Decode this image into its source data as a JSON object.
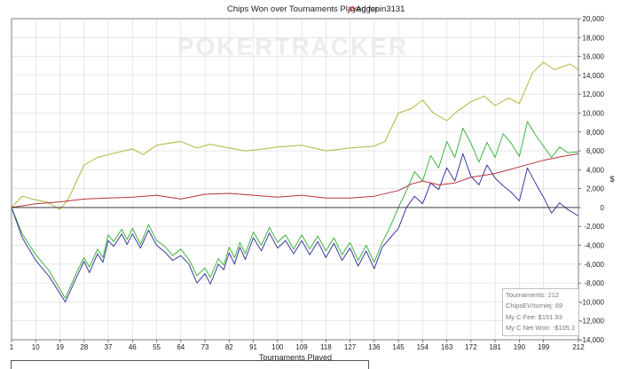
{
  "title_prefix": "Chips Won over Tournaments Played for ",
  "player_name": "Aggspin3131",
  "brand_watermark": "POKERTRACKER",
  "stats": {
    "tournaments": "Tournaments: 212",
    "chipsev": "ChipsEV/turniej: 69",
    "fee": "My C Fee: $151.93",
    "net_won": "My C Net Won: -$105.19"
  },
  "colors": {
    "olive": "#b3b339",
    "green": "#3fb53f",
    "blue": "#3a3aa0",
    "red": "#b8323a",
    "grid": "#d9d9d9"
  },
  "chart_data": {
    "type": "line",
    "title": "Chips Won over Tournaments Played for Aggspin3131",
    "xlabel": "Tournaments Played",
    "ylabel": "$",
    "x_ticks": [
      1,
      10,
      19,
      28,
      37,
      46,
      55,
      64,
      73,
      82,
      91,
      100,
      109,
      118,
      127,
      136,
      145,
      154,
      163,
      172,
      181,
      190,
      199,
      212
    ],
    "xlim": [
      1,
      212
    ],
    "y_ticks": [
      -14000,
      -12000,
      -10000,
      -8000,
      -6000,
      -4000,
      -2000,
      0,
      2000,
      4000,
      6000,
      8000,
      10000,
      12000,
      14000,
      16000,
      18000,
      20000
    ],
    "y_tick_labels": [
      "-14,000",
      "-12,000",
      "-10,000",
      "-8,000",
      "-6,000",
      "-4,000",
      "-2,000",
      "0",
      "2,000",
      "4,000",
      "6,000",
      "8,000",
      "10,000",
      "12,000",
      "14,000",
      "16,000",
      "18,000",
      "20,000"
    ],
    "ylim": [
      -14000,
      20000
    ],
    "grid": true,
    "series": [
      {
        "color": "#b3b339",
        "x": [
          1,
          5,
          10,
          14,
          19,
          22,
          28,
          33,
          37,
          46,
          50,
          55,
          64,
          70,
          75,
          82,
          88,
          95,
          100,
          109,
          118,
          127,
          136,
          140,
          145,
          150,
          154,
          158,
          163,
          166,
          172,
          177,
          181,
          186,
          190,
          195,
          199,
          203,
          206,
          209,
          212
        ],
        "y": [
          0,
          1200,
          800,
          600,
          -200,
          800,
          4500,
          5300,
          5600,
          6200,
          5600,
          6600,
          7000,
          6300,
          6700,
          6300,
          6000,
          6200,
          6400,
          6600,
          6000,
          6300,
          6500,
          7000,
          10000,
          10500,
          11400,
          10000,
          9200,
          10000,
          11200,
          11800,
          10800,
          11600,
          11000,
          14300,
          15400,
          14600,
          14900,
          15200,
          14600
        ]
      },
      {
        "color": "#3fb53f",
        "x": [
          1,
          5,
          10,
          15,
          21,
          25,
          28,
          30,
          33,
          35,
          37,
          39,
          42,
          44,
          46,
          49,
          52,
          55,
          58,
          61,
          64,
          67,
          70,
          73,
          75,
          78,
          80,
          82,
          84,
          86,
          88,
          91,
          94,
          97,
          100,
          103,
          106,
          109,
          112,
          115,
          118,
          121,
          124,
          127,
          130,
          133,
          136,
          139,
          142,
          145,
          148,
          151,
          154,
          157,
          160,
          163,
          166,
          169,
          172,
          175,
          178,
          181,
          184,
          187,
          190,
          193,
          196,
          199,
          202,
          205,
          208,
          212
        ],
        "y": [
          0,
          -2800,
          -5000,
          -6700,
          -9600,
          -7000,
          -5300,
          -6300,
          -4400,
          -5300,
          -2900,
          -3600,
          -2300,
          -3400,
          -2200,
          -3900,
          -1800,
          -3500,
          -4100,
          -5100,
          -4400,
          -5500,
          -7200,
          -6400,
          -7400,
          -5400,
          -6100,
          -4200,
          -5300,
          -3700,
          -4900,
          -2600,
          -4000,
          -2100,
          -3700,
          -2900,
          -4400,
          -2900,
          -4400,
          -3000,
          -4600,
          -3200,
          -5000,
          -3700,
          -5600,
          -4000,
          -5800,
          -3700,
          -2000,
          0,
          1800,
          3800,
          2800,
          5500,
          4200,
          7000,
          5300,
          8400,
          6800,
          4800,
          6900,
          5300,
          7800,
          6800,
          5400,
          9100,
          7700,
          6500,
          5300,
          6400,
          5800,
          5900
        ]
      },
      {
        "color": "#3a3aa0",
        "x": [
          1,
          5,
          10,
          15,
          21,
          25,
          28,
          30,
          33,
          35,
          37,
          39,
          42,
          44,
          46,
          49,
          52,
          55,
          58,
          61,
          64,
          67,
          70,
          73,
          75,
          78,
          80,
          82,
          84,
          86,
          88,
          91,
          94,
          97,
          100,
          103,
          106,
          109,
          112,
          115,
          118,
          121,
          124,
          127,
          130,
          133,
          136,
          139,
          142,
          145,
          148,
          151,
          154,
          157,
          160,
          163,
          166,
          169,
          172,
          175,
          178,
          181,
          184,
          187,
          190,
          193,
          196,
          199,
          202,
          205,
          208,
          212
        ],
        "y": [
          0,
          -3200,
          -5600,
          -7300,
          -10000,
          -7500,
          -5700,
          -6900,
          -4900,
          -5800,
          -3500,
          -4100,
          -2800,
          -3900,
          -2800,
          -4300,
          -2400,
          -4000,
          -4700,
          -5600,
          -5100,
          -6000,
          -8000,
          -7000,
          -8100,
          -6000,
          -6600,
          -4800,
          -6000,
          -4200,
          -5500,
          -3200,
          -4600,
          -2700,
          -4300,
          -3500,
          -4900,
          -3500,
          -5000,
          -3600,
          -5300,
          -3800,
          -5600,
          -4300,
          -6200,
          -4600,
          -6500,
          -4200,
          -3200,
          -2200,
          0,
          1200,
          400,
          2600,
          1900,
          4200,
          2800,
          5700,
          3300,
          2400,
          4500,
          3100,
          2300,
          1600,
          700,
          4200,
          2600,
          1100,
          -600,
          500,
          -200,
          -900
        ]
      },
      {
        "color": "#b8323a",
        "x": [
          1,
          10,
          19,
          28,
          37,
          46,
          55,
          64,
          73,
          82,
          91,
          100,
          109,
          118,
          127,
          136,
          145,
          150,
          154,
          160,
          166,
          172,
          181,
          190,
          199,
          206,
          212
        ],
        "y": [
          0,
          400,
          600,
          900,
          1000,
          1100,
          1300,
          900,
          1400,
          1500,
          1300,
          1100,
          1300,
          1000,
          1000,
          1200,
          1800,
          2500,
          2800,
          2400,
          2600,
          3200,
          3600,
          4300,
          5000,
          5400,
          5700
        ]
      }
    ]
  }
}
